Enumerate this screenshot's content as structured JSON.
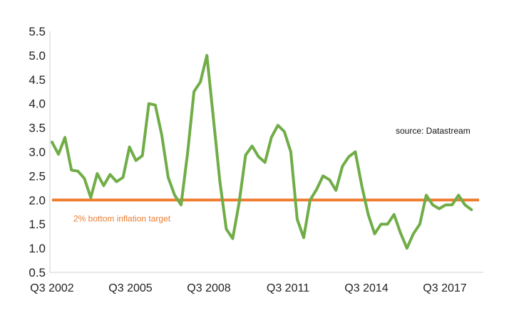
{
  "chart_data": {
    "type": "line",
    "title": "",
    "xlabel": "",
    "ylabel": "",
    "ylim": [
      0.5,
      5.5
    ],
    "y_ticks": [
      "0.5",
      "1.0",
      "1.5",
      "2.0",
      "2.5",
      "3.0",
      "3.5",
      "4.0",
      "4.5",
      "5.0",
      "5.5"
    ],
    "x_tick_labels": [
      "Q3 2002",
      "Q3 2005",
      "Q3 2008",
      "Q3 2011",
      "Q3 2014",
      "Q3 2017"
    ],
    "grid": false,
    "legend": "none",
    "series": [
      {
        "values": [
          3.2,
          2.95,
          3.3,
          2.62,
          2.6,
          2.45,
          2.05,
          2.55,
          2.3,
          2.53,
          2.38,
          2.47,
          3.1,
          2.82,
          2.92,
          4.0,
          3.97,
          3.35,
          2.47,
          2.1,
          1.9,
          2.97,
          4.25,
          4.45,
          5.0,
          3.7,
          2.4,
          1.4,
          1.2,
          1.95,
          2.93,
          3.12,
          2.9,
          2.78,
          3.3,
          3.55,
          3.42,
          3.0,
          1.6,
          1.22,
          2.0,
          2.22,
          2.5,
          2.42,
          2.2,
          2.7,
          2.9,
          3.0,
          2.3,
          1.7,
          1.3,
          1.5,
          1.5,
          1.7,
          1.32,
          1.0,
          1.3,
          1.5,
          2.1,
          1.9,
          1.82,
          1.9,
          1.9,
          2.1,
          1.9,
          1.8
        ],
        "color": "#70ad47"
      }
    ],
    "reference_line": {
      "value": 2.0,
      "label": "2% bottom inflation target",
      "color": "#ed7d31"
    },
    "annotation": "source:  Datastream"
  }
}
